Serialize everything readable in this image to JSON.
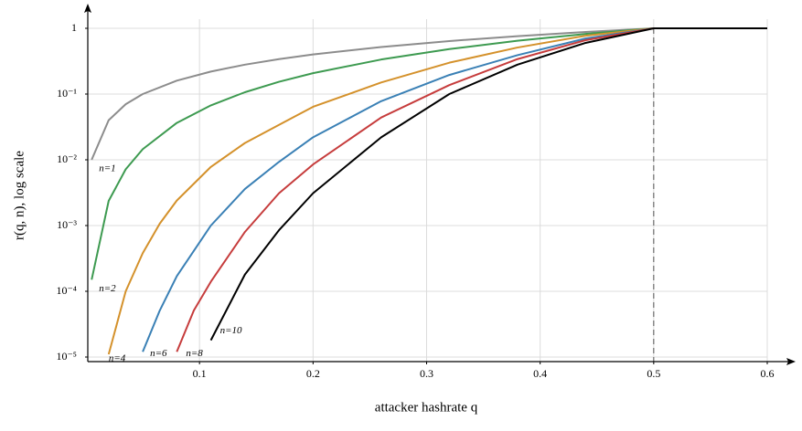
{
  "chart_data": {
    "type": "line",
    "x_label": "attacker hashrate q",
    "y_label": "r(q, n), log scale",
    "xlim": [
      0,
      0.6
    ],
    "ylim": [
      1e-05,
      1
    ],
    "log_y": true,
    "grid": true,
    "xticks": [
      0.1,
      0.2,
      0.3,
      0.4,
      0.5,
      0.6
    ],
    "yticks": [
      {
        "value": 1e-05,
        "label": "10⁻⁵"
      },
      {
        "value": 0.0001,
        "label": "10⁻⁴"
      },
      {
        "value": 0.001,
        "label": "10⁻³"
      },
      {
        "value": 0.01,
        "label": "10⁻²"
      },
      {
        "value": 0.1,
        "label": "10⁻¹"
      },
      1
    ],
    "vline": 0.5,
    "series": [
      {
        "name": "n=1",
        "color": "#8c8c8c",
        "x": [
          0.005,
          0.02,
          0.035,
          0.05,
          0.08,
          0.11,
          0.14,
          0.17,
          0.2,
          0.26,
          0.32,
          0.38,
          0.44,
          0.5,
          0.6
        ],
        "values": [
          0.01,
          0.04,
          0.07,
          0.1,
          0.16,
          0.22,
          0.28,
          0.34,
          0.4,
          0.52,
          0.64,
          0.76,
          0.88,
          1,
          1
        ]
      },
      {
        "name": "n=2",
        "color": "#3d9a50",
        "x": [
          0.005,
          0.02,
          0.035,
          0.05,
          0.08,
          0.11,
          0.14,
          0.17,
          0.2,
          0.26,
          0.32,
          0.38,
          0.44,
          0.5,
          0.6
        ],
        "values": [
          0.00015,
          0.00237,
          0.00718,
          0.0145,
          0.0364,
          0.0673,
          0.1066,
          0.1537,
          0.208,
          0.3353,
          0.4833,
          0.6469,
          0.8209,
          1,
          1
        ]
      },
      {
        "name": "n=4",
        "color": "#d4912b",
        "x": [
          0.02,
          0.035,
          0.05,
          0.065,
          0.08,
          0.11,
          0.14,
          0.17,
          0.2,
          0.26,
          0.32,
          0.38,
          0.44,
          0.5,
          0.6
        ],
        "values": [
          1.1e-05,
          0.0001,
          0.00038,
          0.00107,
          0.0024,
          0.0078,
          0.018,
          0.034,
          0.064,
          0.15,
          0.3,
          0.51,
          0.77,
          1,
          1
        ]
      },
      {
        "name": "n=6",
        "color": "#3a80b5",
        "x": [
          0.05,
          0.065,
          0.08,
          0.11,
          0.14,
          0.17,
          0.2,
          0.26,
          0.32,
          0.38,
          0.44,
          0.5,
          0.6
        ],
        "values": [
          1.2e-05,
          5.1e-05,
          0.00017,
          0.001,
          0.0036,
          0.0093,
          0.022,
          0.078,
          0.195,
          0.39,
          0.7,
          1,
          1
        ]
      },
      {
        "name": "n=8",
        "color": "#c63c3c",
        "x": [
          0.08,
          0.095,
          0.11,
          0.14,
          0.17,
          0.2,
          0.26,
          0.32,
          0.38,
          0.44,
          0.5,
          0.6
        ],
        "values": [
          1.2e-05,
          5.1e-05,
          0.00014,
          0.0008,
          0.0031,
          0.0085,
          0.044,
          0.137,
          0.34,
          0.66,
          1,
          1
        ]
      },
      {
        "name": "n=10",
        "color": "#000000",
        "x": [
          0.11,
          0.14,
          0.17,
          0.2,
          0.26,
          0.32,
          0.38,
          0.44,
          0.5,
          0.6
        ],
        "values": [
          1.8e-05,
          0.00018,
          0.00085,
          0.0031,
          0.022,
          0.1,
          0.28,
          0.6,
          1,
          1
        ]
      }
    ]
  }
}
